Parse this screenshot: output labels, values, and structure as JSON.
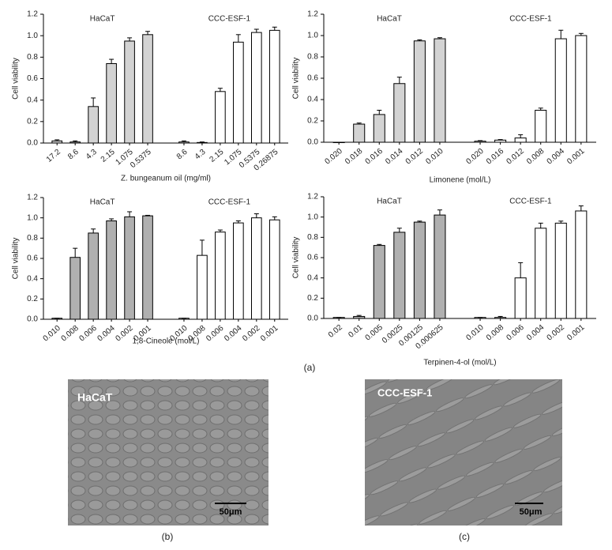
{
  "chart_data": [
    {
      "type": "bar",
      "xlabel": "Z. bungeanum oil (mg/ml)",
      "ylabel": "Cell viability",
      "ylim": [
        0,
        1.2
      ],
      "yticks": [
        {
          "value": 0,
          "label": "0.0"
        },
        0.2,
        0.4,
        0.6,
        0.8,
        {
          "value": 1,
          "label": "1.0"
        },
        1.2
      ],
      "groups": [
        {
          "name": "HaCaT",
          "color": "#d3d3d3",
          "categories": [
            "17.2",
            "8.6",
            "4.3",
            "2.15",
            "1.075",
            "0.5375"
          ],
          "values": [
            0.02,
            0.01,
            0.34,
            0.74,
            0.95,
            1.01
          ],
          "errors": [
            0.01,
            0.01,
            0.08,
            0.04,
            0.03,
            0.03
          ]
        },
        {
          "name": "CCC-ESF-1",
          "color": "#ffffff",
          "categories": [
            "8.6",
            "4.3",
            "2.15",
            "1.075",
            "0.5375",
            "0.26875"
          ],
          "values": [
            0.01,
            0.005,
            0.48,
            0.94,
            1.03,
            1.05
          ],
          "errors": [
            0.01,
            0.005,
            0.03,
            0.07,
            0.03,
            0.03
          ]
        }
      ]
    },
    {
      "type": "bar",
      "xlabel": "Limonene (mol/L)",
      "ylabel": "Cell viability",
      "ylim": [
        0,
        1.2
      ],
      "yticks": [
        {
          "value": 0,
          "label": "0.0"
        },
        0.2,
        0.4,
        0.6,
        0.8,
        {
          "value": 1,
          "label": "1.0"
        },
        1.2
      ],
      "groups": [
        {
          "name": "HaCaT",
          "color": "#d3d3d3",
          "categories": [
            "0.020",
            "0.018",
            "0.016",
            "0.014",
            "0.012",
            "0.010"
          ],
          "values": [
            0,
            0.17,
            0.26,
            0.55,
            0.95,
            0.97
          ],
          "errors": [
            0,
            0.01,
            0.04,
            0.06,
            0.01,
            0.01
          ]
        },
        {
          "name": "CCC-ESF-1",
          "color": "#ffffff",
          "categories": [
            "0.020",
            "0.016",
            "0.012",
            "0.008",
            "0.004",
            "0.001"
          ],
          "values": [
            0.01,
            0.02,
            0.04,
            0.3,
            0.97,
            1.0
          ],
          "errors": [
            0.005,
            0.005,
            0.03,
            0.02,
            0.08,
            0.02
          ]
        }
      ]
    },
    {
      "type": "bar",
      "xlabel": "1,8-Cineole (mol/L)",
      "ylabel": "Cell viability",
      "ylim": [
        0,
        1.2
      ],
      "yticks": [
        {
          "value": 0,
          "label": "0.0"
        },
        0.2,
        0.4,
        0.6,
        0.8,
        {
          "value": 1,
          "label": "1.0"
        },
        1.2
      ],
      "groups": [
        {
          "name": "HaCaT",
          "color": "#b0b0b0",
          "categories": [
            "0.010",
            "0.008",
            "0.006",
            "0.004",
            "0.002",
            "0.001"
          ],
          "values": [
            0.01,
            0.61,
            0.85,
            0.97,
            1.01,
            1.02
          ],
          "errors": [
            0,
            0.09,
            0.04,
            0.02,
            0.05,
            0.005
          ]
        },
        {
          "name": "CCC-ESF-1",
          "color": "#ffffff",
          "categories": [
            "0.010",
            "0.008",
            "0.006",
            "0.004",
            "0.002",
            "0.001"
          ],
          "values": [
            0.01,
            0.63,
            0.86,
            0.95,
            1.0,
            0.98
          ],
          "errors": [
            0,
            0.15,
            0.02,
            0.02,
            0.04,
            0.03
          ]
        }
      ]
    },
    {
      "type": "bar",
      "xlabel": "Terpinen-4-ol (mol/L)",
      "ylabel": "Cell viability",
      "ylim": [
        0,
        1.2
      ],
      "yticks": [
        {
          "value": 0,
          "label": "0.0"
        },
        0.2,
        0.4,
        0.6,
        0.8,
        {
          "value": 1,
          "label": "1.0"
        },
        1.2
      ],
      "groups": [
        {
          "name": "HaCaT",
          "color": "#b0b0b0",
          "categories": [
            "0.02",
            "0.01",
            "0.005",
            "0.0025",
            "0.00125",
            "0.000625"
          ],
          "values": [
            0.01,
            0.02,
            0.72,
            0.85,
            0.95,
            1.02
          ],
          "errors": [
            0,
            0.01,
            0.01,
            0.04,
            0.01,
            0.05
          ]
        },
        {
          "name": "CCC-ESF-1",
          "color": "#ffffff",
          "categories": [
            "0.010",
            "0.008",
            "0.006",
            "0.004",
            "0.002",
            "0.001"
          ],
          "values": [
            0.01,
            0.01,
            0.4,
            0.89,
            0.94,
            1.06
          ],
          "errors": [
            0,
            0.01,
            0.15,
            0.05,
            0.02,
            0.05
          ]
        }
      ]
    }
  ],
  "panel_labels": [
    "(a)",
    "(b)",
    "(c)"
  ],
  "images": [
    {
      "label": "HaCaT",
      "scale": "50μm"
    },
    {
      "label": "CCC-ESF-1",
      "scale": "50μm"
    }
  ]
}
